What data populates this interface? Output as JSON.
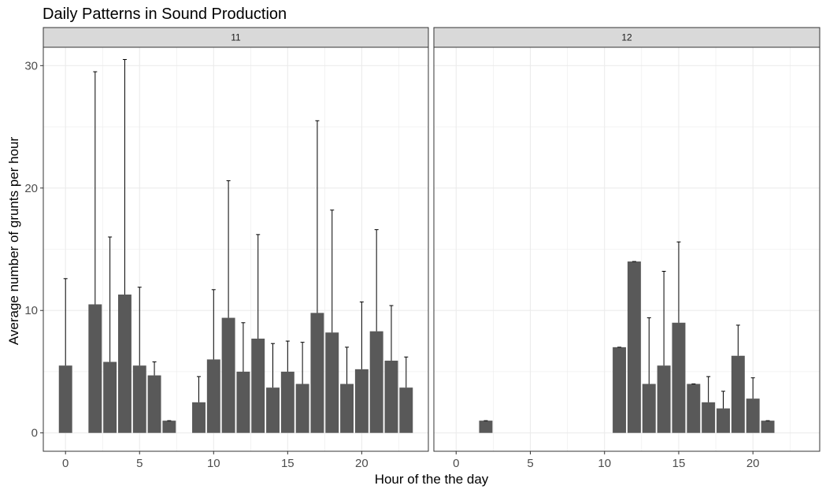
{
  "chart_data": {
    "type": "bar",
    "title": "Daily Patterns in Sound Production",
    "xlabel": "Hour of the the day",
    "ylabel": "Average number of grunts per hour",
    "xlim": [
      -1.5,
      24.5
    ],
    "ylim": [
      -1.5,
      31.5
    ],
    "x_ticks": [
      0,
      5,
      10,
      15,
      20
    ],
    "y_ticks": [
      0,
      10,
      20,
      30
    ],
    "grid": true,
    "error_bars": true,
    "colors": {
      "bar": "#595959",
      "strip_fill": "#d9d9d9",
      "grid": "#ebebeb",
      "panel_border": "#333333",
      "error_bar": "#000000"
    },
    "panels": [
      {
        "label": "11",
        "hours": [
          0,
          2,
          3,
          4,
          5,
          6,
          7,
          9,
          10,
          11,
          12,
          13,
          14,
          15,
          16,
          17,
          18,
          19,
          20,
          21,
          22,
          23
        ],
        "values": [
          5.5,
          10.5,
          5.8,
          11.3,
          5.5,
          4.7,
          1.0,
          2.5,
          6.0,
          9.4,
          5.0,
          7.7,
          3.7,
          5.0,
          4.0,
          9.8,
          8.2,
          4.0,
          5.2,
          8.3,
          5.9,
          3.7
        ],
        "upper": [
          12.6,
          29.5,
          16.0,
          30.5,
          11.9,
          5.8,
          1.0,
          4.6,
          11.7,
          20.6,
          9.0,
          16.2,
          7.3,
          7.5,
          7.4,
          25.5,
          18.2,
          7.0,
          10.7,
          16.6,
          10.4,
          6.2
        ]
      },
      {
        "label": "12",
        "hours": [
          2,
          11,
          12,
          13,
          14,
          15,
          16,
          17,
          18,
          19,
          20,
          21
        ],
        "values": [
          1.0,
          7.0,
          14.0,
          4.0,
          5.5,
          9.0,
          4.0,
          2.5,
          2.0,
          6.3,
          2.8,
          1.0
        ],
        "upper": [
          1.0,
          7.0,
          14.0,
          9.4,
          13.2,
          15.6,
          4.0,
          4.6,
          3.4,
          8.8,
          4.5,
          1.0
        ]
      }
    ]
  }
}
